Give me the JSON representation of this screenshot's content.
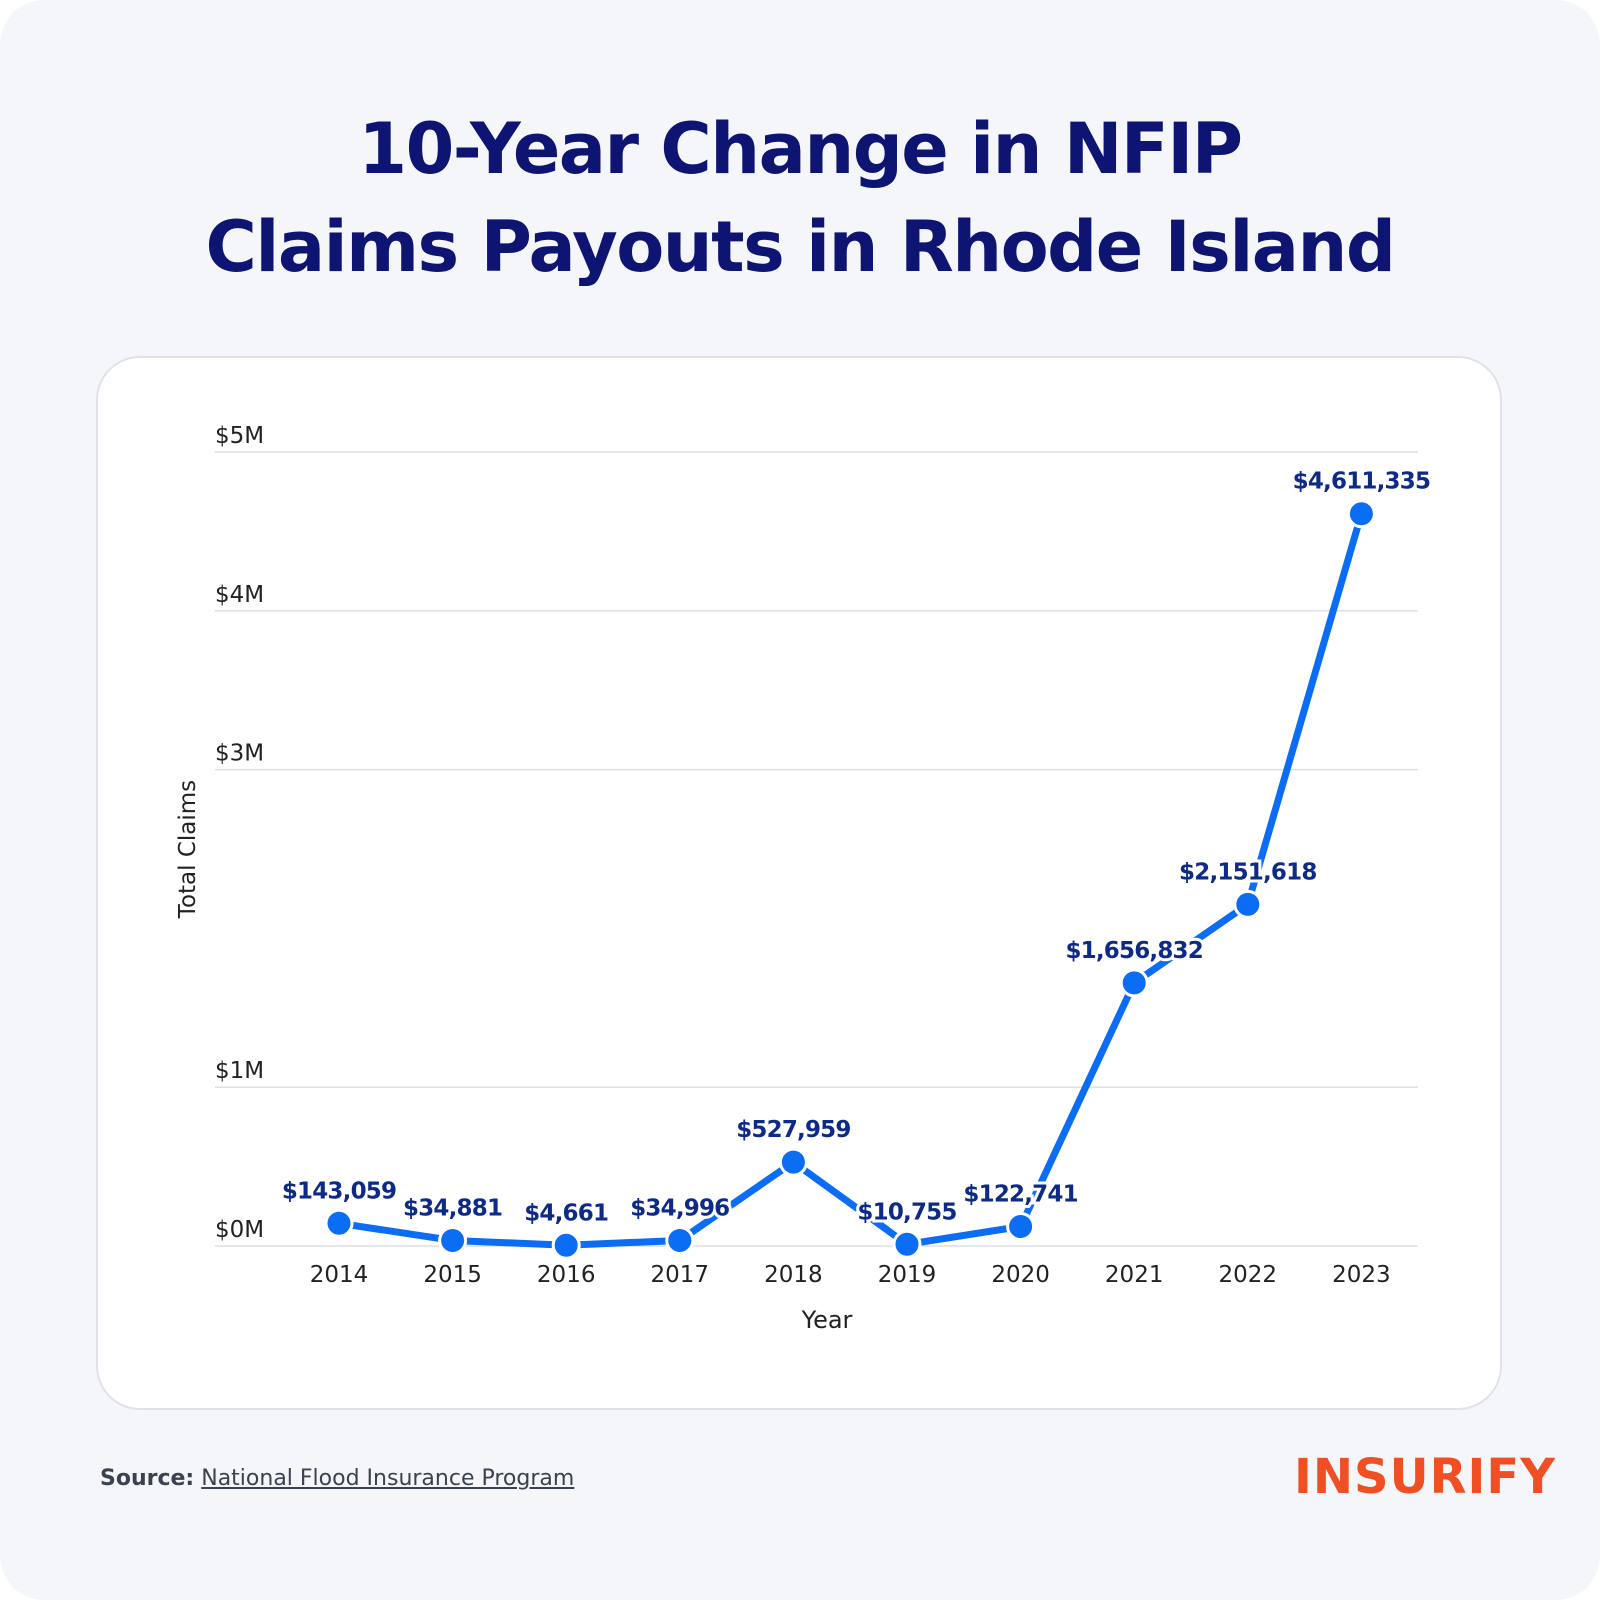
{
  "title_lines": [
    "10-Year Change in NFIP",
    "Claims Payouts in Rhode Island"
  ],
  "source": {
    "label": "Source:",
    "link_text": "National Flood Insurance Program"
  },
  "logo_text": "INSURIFY",
  "colors": {
    "line": "#0b6cf4",
    "label": "#0d2a86",
    "title": "#0d1472",
    "logo": "#f04e23"
  },
  "chart_data": {
    "type": "line",
    "title": "10-Year Change in NFIP Claims Payouts in Rhode Island",
    "xlabel": "Year",
    "ylabel": "Total Claims",
    "x": [
      "2014",
      "2015",
      "2016",
      "2017",
      "2018",
      "2019",
      "2020",
      "2021",
      "2022",
      "2023"
    ],
    "series": [
      {
        "values": [
          143059,
          34881,
          4661,
          34996,
          527959,
          10755,
          122741,
          1656832,
          2151618,
          4611335
        ],
        "data_labels": [
          "$143,059",
          "$34,881",
          "$4,661",
          "$34,996",
          "$527,959",
          "$10,755",
          "$122,741",
          "$1,656,832",
          "$2,151,618",
          "$4,611,335"
        ]
      }
    ],
    "y_ticks": [
      {
        "value": 0,
        "label": "$0M"
      },
      {
        "value": 1000000,
        "label": "$1M"
      },
      {
        "value": 3000000,
        "label": "$3M"
      },
      {
        "value": 4000000,
        "label": "$4M"
      },
      {
        "value": 5000000,
        "label": "$5M"
      }
    ],
    "ylim": [
      0,
      5000000
    ],
    "grid": true
  }
}
